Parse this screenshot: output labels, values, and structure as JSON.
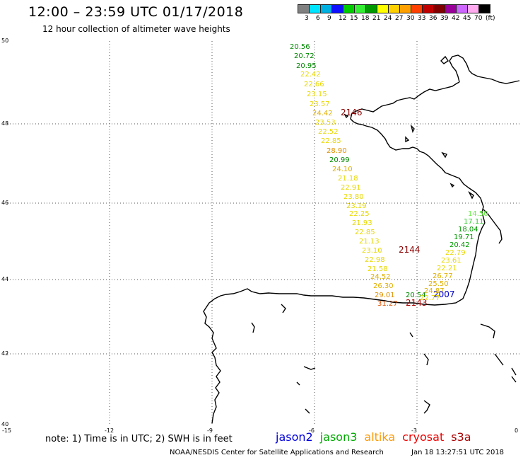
{
  "title": "12:00 – 23:59 UTC 01/17/2018",
  "subtitle": "12 hour collection of altimeter wave heights",
  "scale": {
    "swatches": [
      "#808080",
      "#00e5ff",
      "#00b0e0",
      "#1010ff",
      "#00cc00",
      "#33ee33",
      "#009900",
      "#ffff00",
      "#ffd000",
      "#ffa000",
      "#ff4000",
      "#c00000",
      "#800000",
      "#990099",
      "#cc66ff",
      "#ffaaee",
      "#000000"
    ],
    "labels": [
      "3",
      "6",
      "9",
      "12",
      "15",
      "18",
      "21",
      "24",
      "27",
      "30",
      "33",
      "36",
      "39",
      "42",
      "45",
      "70",
      "(ft)"
    ]
  },
  "axes": {
    "lat_labels": [
      "50",
      "48",
      "46",
      "44",
      "42",
      "40"
    ],
    "lon_labels": [
      "-15",
      "-12",
      "-9",
      "-6",
      "-3",
      "0"
    ]
  },
  "map_data": {
    "readings": [
      {
        "text": "20.56",
        "color": "#008800"
      },
      {
        "text": "20.72",
        "color": "#008800"
      },
      {
        "text": "20.95",
        "color": "#008800"
      },
      {
        "text": "22.42",
        "color": "#e8d800"
      },
      {
        "text": "22.66",
        "color": "#e8d800"
      },
      {
        "text": "23.15",
        "color": "#e8d800"
      },
      {
        "text": "23.57",
        "color": "#e8d800"
      },
      {
        "text": "24.42",
        "color": "#e0b000"
      },
      {
        "text": "23.53",
        "color": "#e8d800"
      },
      {
        "text": "22.52",
        "color": "#e8d800"
      },
      {
        "text": "22.85",
        "color": "#e8d800"
      },
      {
        "text": "28.90",
        "color": "#e09000"
      },
      {
        "text": "20.99",
        "color": "#008800"
      },
      {
        "text": "24.10",
        "color": "#e0b000"
      },
      {
        "text": "21.18",
        "color": "#e8d800"
      },
      {
        "text": "22.91",
        "color": "#e8d800"
      },
      {
        "text": "23.80",
        "color": "#e8d800"
      },
      {
        "text": "23.19",
        "color": "#e8d800"
      },
      {
        "text": "22.25",
        "color": "#e8d800"
      },
      {
        "text": "21.93",
        "color": "#e8d800"
      },
      {
        "text": "22.85",
        "color": "#e8d800"
      },
      {
        "text": "21.13",
        "color": "#e8d800"
      },
      {
        "text": "23.10",
        "color": "#e8d800"
      },
      {
        "text": "22.98",
        "color": "#e8d800"
      },
      {
        "text": "21.58",
        "color": "#e8d800"
      },
      {
        "text": "24.52",
        "color": "#e0b000"
      },
      {
        "text": "26.30",
        "color": "#e0b000"
      },
      {
        "text": "29.01",
        "color": "#e09000"
      },
      {
        "text": "31.27",
        "color": "#e05000"
      },
      {
        "text": "20.54",
        "color": "#008800"
      },
      {
        "text": "2143",
        "color": "#aa0000"
      },
      {
        "text": "2007",
        "color": "#0000cc"
      },
      {
        "text": "2144",
        "color": "#880000"
      },
      {
        "text": "2146",
        "color": "#880000"
      },
      {
        "text": "14.50",
        "color": "#66ee44"
      },
      {
        "text": "17.11",
        "color": "#33cc33"
      },
      {
        "text": "18.04",
        "color": "#009900"
      },
      {
        "text": "19.71",
        "color": "#009900"
      },
      {
        "text": "20.42",
        "color": "#009900"
      },
      {
        "text": "22.79",
        "color": "#e8d800"
      },
      {
        "text": "23.61",
        "color": "#e8d800"
      },
      {
        "text": "22.21",
        "color": "#e8d800"
      },
      {
        "text": "26.77",
        "color": "#e0b000"
      },
      {
        "text": "25.50",
        "color": "#e0b000"
      },
      {
        "text": "24.87",
        "color": "#e0b000"
      },
      {
        "text": "22.77",
        "color": "#e8d800"
      }
    ]
  },
  "note": "note:  1) Time is in UTC;  2) SWH is in feet",
  "satellites": [
    {
      "name": "jason2",
      "color": "#0000dd"
    },
    {
      "name": "jason3",
      "color": "#00aa00"
    },
    {
      "name": "altika",
      "color": "#ff9900"
    },
    {
      "name": "cryosat",
      "color": "#ee0000"
    },
    {
      "name": "s3a",
      "color": "#aa0000"
    }
  ],
  "credit": "NOAA/NESDIS Center for Satellite Applications and Research",
  "timestamp": "Jan 18 13:27:51 UTC 2018"
}
